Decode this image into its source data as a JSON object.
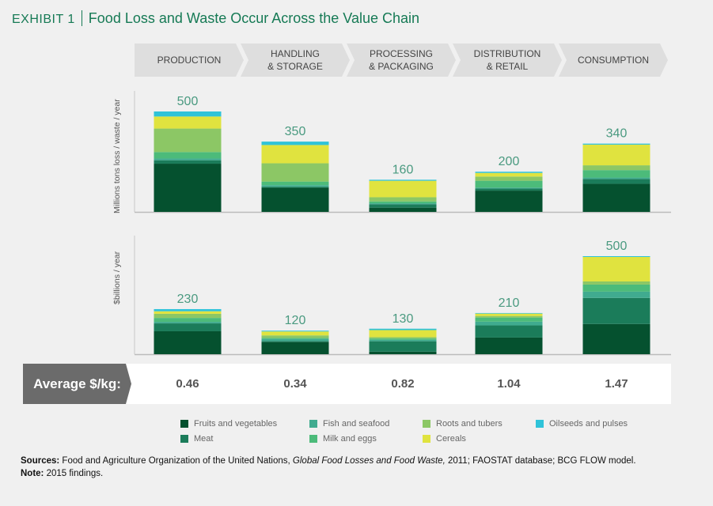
{
  "header": {
    "exhibit": "EXHIBIT 1",
    "title": "Food Loss and Waste Occur Across the Value Chain"
  },
  "stages": [
    "PRODUCTION",
    "HANDLING\n& STORAGE",
    "PROCESSING\n& PACKAGING",
    "DISTRIBUTION\n& RETAIL",
    "CONSUMPTION"
  ],
  "average": {
    "label": "Average $/kg:",
    "values": [
      "0.46",
      "0.34",
      "0.82",
      "1.04",
      "1.47"
    ]
  },
  "chart_data": [
    {
      "type": "bar",
      "stacked": true,
      "ylabel": "Millions tons loss / waste / year",
      "categories": [
        "Production",
        "Handling & Storage",
        "Processing & Packaging",
        "Distribution & Retail",
        "Consumption"
      ],
      "totals": [
        "500",
        "350",
        "160",
        "200",
        "340"
      ],
      "ylim": [
        0,
        600
      ],
      "series": [
        {
          "name": "Fruits and vegetables",
          "values": [
            240,
            120,
            21,
            106,
            140
          ]
        },
        {
          "name": "Meat",
          "values": [
            17,
            5,
            17,
            10,
            24
          ]
        },
        {
          "name": "Fish and seafood",
          "values": [
            9,
            8,
            5,
            5,
            7
          ]
        },
        {
          "name": "Milk and eggs",
          "values": [
            32,
            18,
            9,
            34,
            37
          ]
        },
        {
          "name": "Roots and tubers",
          "values": [
            117,
            91,
            21,
            21,
            24
          ]
        },
        {
          "name": "Cereals",
          "values": [
            60,
            91,
            82,
            18,
            103
          ]
        },
        {
          "name": "Oilseeds and pulses",
          "values": [
            25,
            17,
            5,
            6,
            5
          ]
        }
      ]
    },
    {
      "type": "bar",
      "stacked": true,
      "ylabel": "$billions / year",
      "categories": [
        "Production",
        "Handling & Storage",
        "Processing & Packaging",
        "Distribution & Retail",
        "Consumption"
      ],
      "totals": [
        "230",
        "120",
        "130",
        "210",
        "500"
      ],
      "ylim": [
        0,
        600
      ],
      "series": [
        {
          "name": "Fruits and vegetables",
          "values": [
            117,
            62,
            13,
            85,
            154
          ]
        },
        {
          "name": "Meat",
          "values": [
            40,
            5,
            53,
            62,
            133
          ]
        },
        {
          "name": "Fish and seafood",
          "values": [
            8,
            11,
            7,
            19,
            32
          ]
        },
        {
          "name": "Milk and eggs",
          "values": [
            20,
            5,
            7,
            21,
            36
          ]
        },
        {
          "name": "Roots and tubers",
          "values": [
            21,
            13,
            7,
            8,
            16
          ]
        },
        {
          "name": "Cereals",
          "values": [
            13,
            20,
            36,
            12,
            125
          ]
        },
        {
          "name": "Oilseeds and pulses",
          "values": [
            11,
            4,
            7,
            3,
            4
          ]
        }
      ]
    }
  ],
  "legend": [
    {
      "label": "Fruits and vegetables",
      "color": "#05512f"
    },
    {
      "label": "Meat",
      "color": "#1b7c5a"
    },
    {
      "label": "Fish and seafood",
      "color": "#40ab8f"
    },
    {
      "label": "Milk and eggs",
      "color": "#4cbb7a"
    },
    {
      "label": "Roots and tubers",
      "color": "#8cc765"
    },
    {
      "label": "Cereals",
      "color": "#e0e33f"
    },
    {
      "label": "Oilseeds and pulses",
      "color": "#2fc3d9"
    }
  ],
  "footer": {
    "sources_label": "Sources:",
    "sources_text1": " Food and Agriculture Organization of the United Nations, ",
    "sources_italic": "Global Food Losses and Food Waste,",
    "sources_text2": " 2011; FAOSTAT database; BCG FLOW model.",
    "note_label": "Note:",
    "note_text": " 2015 findings."
  }
}
